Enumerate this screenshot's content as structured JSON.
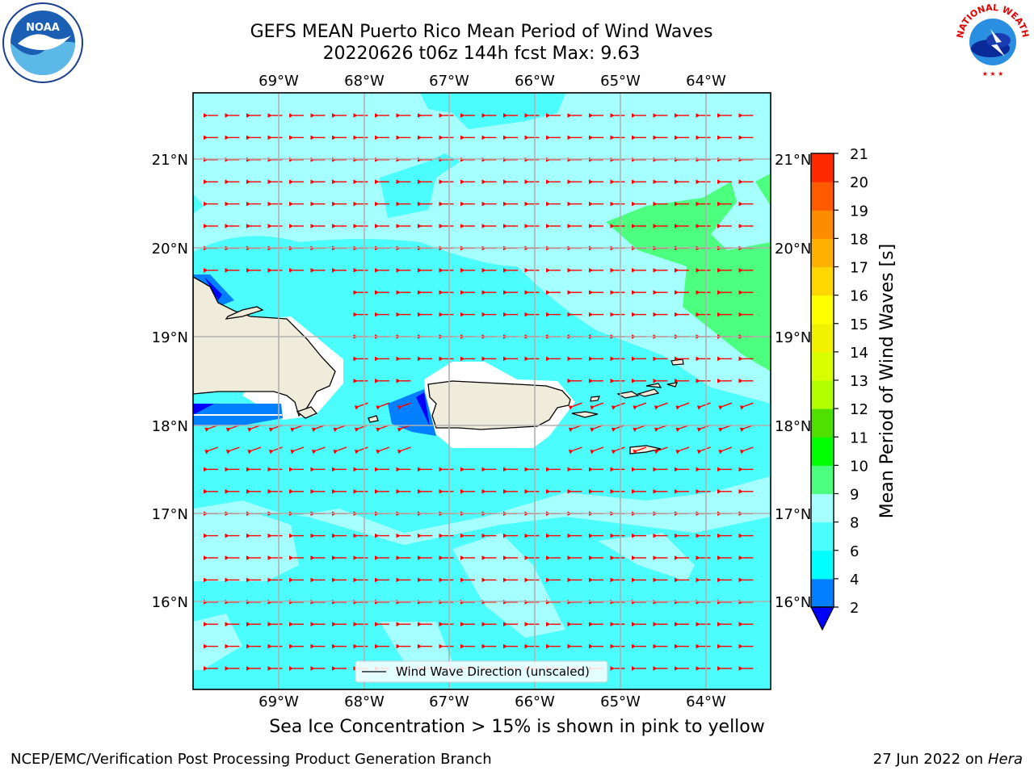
{
  "header": {
    "title_line1": "GEFS MEAN Puerto Rico Mean Period of Wind Waves",
    "title_line2": "20220626 t06z 144h fcst   Max: 9.63"
  },
  "logos": {
    "left": "noaa-logo",
    "right": "national-weather-service-logo",
    "right_text": "NATIONAL WEATHER SERVICE"
  },
  "map": {
    "lon_ticks": [
      "69°W",
      "68°W",
      "67°W",
      "66°W",
      "65°W",
      "64°W"
    ],
    "lat_ticks": [
      "21°N",
      "20°N",
      "19°N",
      "18°N",
      "17°N",
      "16°N"
    ],
    "legend": "Wind Wave Direction (unscaled)",
    "arrow_color": "#ff0000",
    "land_color": "#efecdc",
    "palette": {
      "light": "#a6ffff",
      "cyan": "#4cfdfd",
      "blue_mid": "#0080ff",
      "blue_dark": "#0000ff",
      "green": "#4cff7f"
    }
  },
  "colorbar": {
    "label": "Mean Period of Wind Waves [s]",
    "ticks": [
      "2",
      "4",
      "6",
      "8",
      "9",
      "10",
      "11",
      "12",
      "13",
      "14",
      "15",
      "16",
      "17",
      "18",
      "19",
      "20",
      "21"
    ],
    "colors": [
      "#0080ff",
      "#00ffff",
      "#4cfdfd",
      "#a6ffff",
      "#4cff7f",
      "#00ff00",
      "#4fe000",
      "#b3ff00",
      "#d7ff00",
      "#f2f200",
      "#ffff00",
      "#ffd700",
      "#ffb000",
      "#ff8c00",
      "#ff5a00",
      "#ff2a00"
    ],
    "under_color": "#0000ff",
    "over_color": "#ff0000"
  },
  "note": "Sea Ice Concentration > 15% is shown in pink to yellow",
  "footer": {
    "left": "NCEP/EMC/Verification Post Processing Product Generation Branch",
    "right_date": "27 Jun 2022 on",
    "right_host": "Hera"
  }
}
